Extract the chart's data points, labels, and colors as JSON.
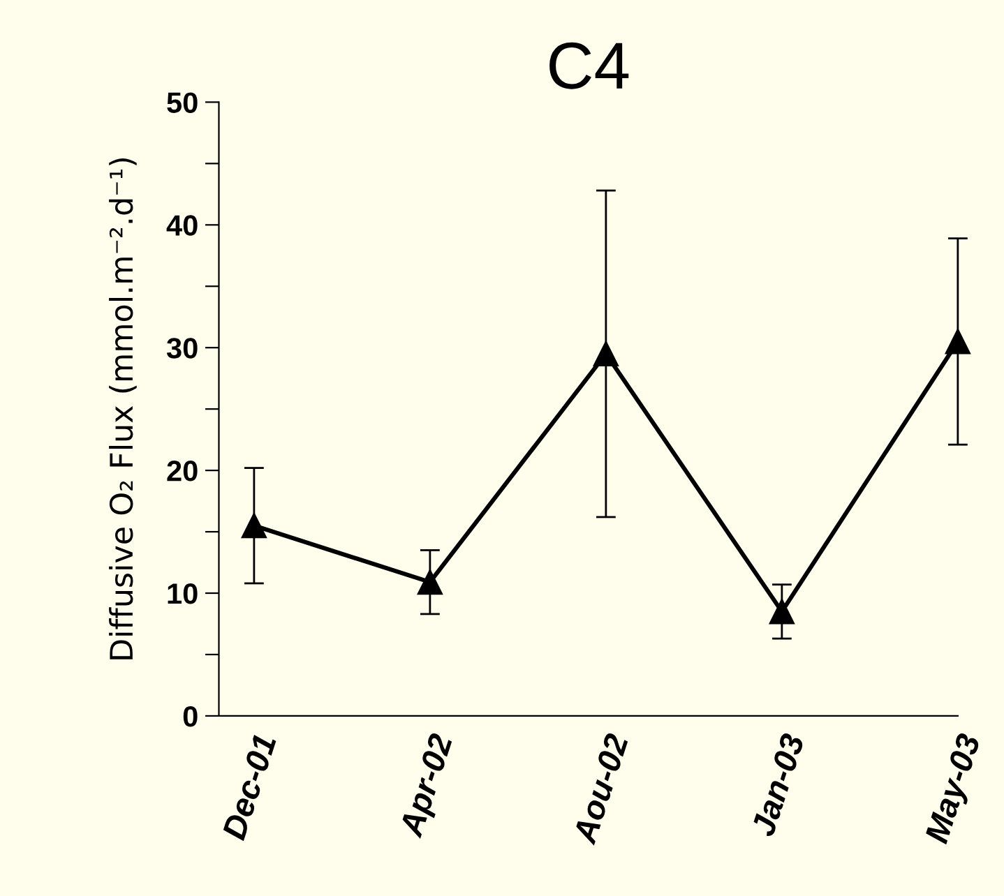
{
  "chart_data": {
    "type": "line",
    "title": "C4",
    "ylabel": "Diffusive O₂ Flux (mmol.m⁻².d⁻¹)",
    "categories": [
      "Dec-01",
      "Apr-02",
      "Aou-02",
      "Jan-03",
      "May-03"
    ],
    "series": [
      {
        "color": "#000000",
        "values": [
          15.5,
          10.9,
          29.5,
          8.5,
          30.5
        ],
        "errors": [
          4.7,
          2.6,
          13.3,
          2.2,
          8.4
        ]
      }
    ],
    "ylim": [
      0,
      50
    ],
    "yticks": [
      0,
      {
        "value": 5,
        "label": null
      },
      10,
      {
        "value": 15,
        "label": null
      },
      20,
      {
        "value": 25,
        "label": null
      },
      30,
      {
        "value": 35,
        "label": null
      },
      40,
      {
        "value": 45,
        "label": null
      },
      50
    ],
    "marker": "triangle",
    "line_style": "solid",
    "grid": false,
    "legend": false
  }
}
